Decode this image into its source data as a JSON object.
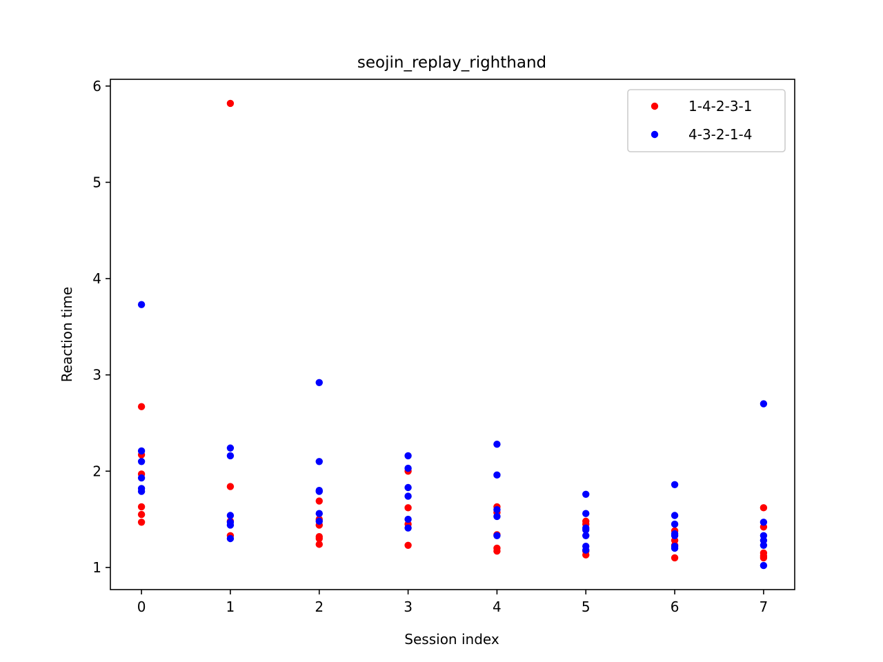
{
  "chart_data": {
    "type": "scatter",
    "title": "seojin_replay_righthand",
    "xlabel": "Session index",
    "ylabel": "Reaction time",
    "xlim": [
      -0.35,
      7.35
    ],
    "ylim": [
      0.77,
      6.07
    ],
    "xticks": [
      0,
      1,
      2,
      3,
      4,
      5,
      6,
      7
    ],
    "yticks": [
      1,
      2,
      3,
      4,
      5,
      6
    ],
    "grid": false,
    "legend": "top-right",
    "series": [
      {
        "name": "1-4-2-3-1",
        "color": "#ff0000",
        "points": [
          [
            0,
            2.67
          ],
          [
            0,
            2.17
          ],
          [
            0,
            1.97
          ],
          [
            0,
            1.63
          ],
          [
            0,
            1.55
          ],
          [
            0,
            1.47
          ],
          [
            1,
            5.82
          ],
          [
            1,
            1.84
          ],
          [
            1,
            1.48
          ],
          [
            1,
            1.33
          ],
          [
            2,
            1.69
          ],
          [
            2,
            1.5
          ],
          [
            2,
            1.44
          ],
          [
            2,
            1.32
          ],
          [
            2,
            1.3
          ],
          [
            2,
            1.24
          ],
          [
            3,
            2.0
          ],
          [
            3,
            1.62
          ],
          [
            3,
            1.45
          ],
          [
            3,
            1.23
          ],
          [
            4,
            1.63
          ],
          [
            4,
            1.57
          ],
          [
            4,
            1.34
          ],
          [
            4,
            1.2
          ],
          [
            4,
            1.17
          ],
          [
            5,
            1.48
          ],
          [
            5,
            1.45
          ],
          [
            5,
            1.17
          ],
          [
            5,
            1.13
          ],
          [
            6,
            1.38
          ],
          [
            6,
            1.28
          ],
          [
            6,
            1.23
          ],
          [
            6,
            1.1
          ],
          [
            7,
            1.62
          ],
          [
            7,
            1.42
          ],
          [
            7,
            1.15
          ],
          [
            7,
            1.12
          ],
          [
            7,
            1.1
          ]
        ]
      },
      {
        "name": "4-3-2-1-4",
        "color": "#0000ff",
        "points": [
          [
            0,
            3.73
          ],
          [
            0,
            2.21
          ],
          [
            0,
            2.1
          ],
          [
            0,
            1.93
          ],
          [
            0,
            1.82
          ],
          [
            0,
            1.79
          ],
          [
            1,
            2.24
          ],
          [
            1,
            2.16
          ],
          [
            1,
            1.54
          ],
          [
            1,
            1.47
          ],
          [
            1,
            1.44
          ],
          [
            1,
            1.3
          ],
          [
            2,
            2.92
          ],
          [
            2,
            2.1
          ],
          [
            2,
            1.8
          ],
          [
            2,
            1.79
          ],
          [
            2,
            1.56
          ],
          [
            2,
            1.48
          ],
          [
            3,
            2.16
          ],
          [
            3,
            2.03
          ],
          [
            3,
            1.83
          ],
          [
            3,
            1.74
          ],
          [
            3,
            1.5
          ],
          [
            3,
            1.41
          ],
          [
            4,
            2.28
          ],
          [
            4,
            1.96
          ],
          [
            4,
            1.6
          ],
          [
            4,
            1.53
          ],
          [
            4,
            1.33
          ],
          [
            5,
            1.76
          ],
          [
            5,
            1.56
          ],
          [
            5,
            1.41
          ],
          [
            5,
            1.39
          ],
          [
            5,
            1.33
          ],
          [
            5,
            1.22
          ],
          [
            5,
            1.18
          ],
          [
            6,
            1.86
          ],
          [
            6,
            1.54
          ],
          [
            6,
            1.45
          ],
          [
            6,
            1.35
          ],
          [
            6,
            1.33
          ],
          [
            6,
            1.22
          ],
          [
            6,
            1.2
          ],
          [
            7,
            2.7
          ],
          [
            7,
            1.47
          ],
          [
            7,
            1.33
          ],
          [
            7,
            1.28
          ],
          [
            7,
            1.23
          ],
          [
            7,
            1.02
          ]
        ]
      }
    ]
  }
}
